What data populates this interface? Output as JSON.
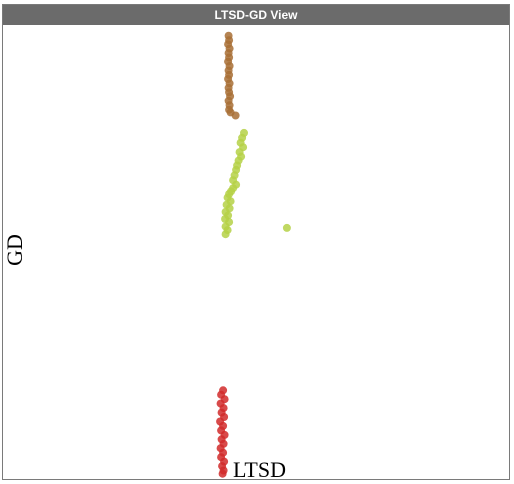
{
  "window": {
    "title": "LTSD-GD View"
  },
  "chart_data": {
    "type": "scatter",
    "title": "LTSD-GD View",
    "xlabel": "LTSD",
    "ylabel": "GD",
    "xlim": [
      0,
      100
    ],
    "ylim": [
      0,
      100
    ],
    "grid": false,
    "legend": "none",
    "series": [
      {
        "color": "#a86f35",
        "points": [
          [
            44.5,
            98.5
          ],
          [
            44.6,
            97.5
          ],
          [
            44.4,
            96.6
          ],
          [
            44.7,
            95.6
          ],
          [
            44.5,
            94.6
          ],
          [
            44.6,
            93.6
          ],
          [
            44.4,
            92.7
          ],
          [
            44.7,
            91.7
          ],
          [
            44.5,
            90.7
          ],
          [
            44.6,
            89.7
          ],
          [
            44.4,
            88.8
          ],
          [
            44.7,
            87.8
          ],
          [
            44.5,
            86.8
          ],
          [
            44.6,
            85.8
          ],
          [
            44.8,
            84.9
          ],
          [
            44.5,
            83.9
          ],
          [
            44.7,
            82.9
          ],
          [
            44.6,
            81.9
          ],
          [
            44.9,
            81.3
          ],
          [
            45.9,
            80.6
          ]
        ]
      },
      {
        "color": "#b5d147",
        "points": [
          [
            47.6,
            76.7
          ],
          [
            47.2,
            75.6
          ],
          [
            46.9,
            74.5
          ],
          [
            47.4,
            73.5
          ],
          [
            46.7,
            72.4
          ],
          [
            47.0,
            71.4
          ],
          [
            46.5,
            70.5
          ],
          [
            46.2,
            69.4
          ],
          [
            46.0,
            68.4
          ],
          [
            45.7,
            67.2
          ],
          [
            45.4,
            66.1
          ],
          [
            46.0,
            65.1
          ],
          [
            45.4,
            64.3
          ],
          [
            45.0,
            63.6
          ],
          [
            44.6,
            63.0
          ],
          [
            44.3,
            62.2
          ],
          [
            44.9,
            61.4
          ],
          [
            44.1,
            60.6
          ],
          [
            44.7,
            59.8
          ],
          [
            43.9,
            59.0
          ],
          [
            44.4,
            58.2
          ],
          [
            43.8,
            57.4
          ],
          [
            44.6,
            56.7
          ],
          [
            43.9,
            55.7
          ],
          [
            44.3,
            54.9
          ],
          [
            43.9,
            54.0
          ],
          [
            56.2,
            55.4
          ]
        ]
      },
      {
        "color": "#d12a2a",
        "points": [
          [
            43.4,
            19.0
          ],
          [
            43.0,
            18.0
          ],
          [
            43.7,
            17.0
          ],
          [
            42.9,
            16.0
          ],
          [
            43.5,
            15.0
          ],
          [
            43.1,
            14.0
          ],
          [
            43.6,
            13.0
          ],
          [
            42.8,
            12.0
          ],
          [
            43.4,
            11.0
          ],
          [
            43.0,
            10.0
          ],
          [
            43.7,
            9.0
          ],
          [
            43.1,
            8.0
          ],
          [
            43.5,
            7.0
          ],
          [
            42.9,
            6.0
          ],
          [
            43.4,
            5.0
          ],
          [
            43.0,
            4.0
          ],
          [
            43.6,
            3.0
          ],
          [
            43.2,
            2.0
          ],
          [
            43.5,
            1.0
          ],
          [
            43.3,
            0.3
          ]
        ]
      }
    ]
  }
}
